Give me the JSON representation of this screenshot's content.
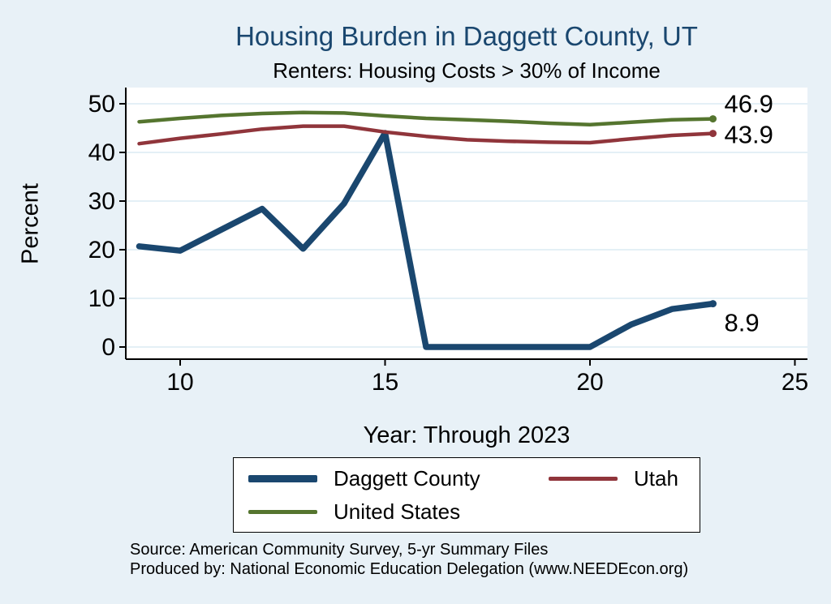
{
  "colors": {
    "background": "#e8f1f7",
    "title": "#1a476f",
    "plot_background": "#ffffff",
    "grid": "#dcebf3",
    "axis": "#000000",
    "legend_border": "#000000"
  },
  "chart_data": {
    "type": "line",
    "title": "Housing Burden in Daggett County, UT",
    "subtitle": "Renters: Housing Costs > 30% of Income",
    "xlabel": "Year: Through 2023",
    "ylabel": "Percent",
    "x": [
      9,
      10,
      11,
      12,
      13,
      14,
      15,
      16,
      17,
      18,
      19,
      20,
      21,
      22,
      23
    ],
    "x_ticks": [
      10,
      15,
      20,
      25
    ],
    "y_ticks": [
      0,
      10,
      20,
      30,
      40,
      50
    ],
    "xlim": [
      8.7,
      25.3
    ],
    "ylim": [
      -2.5,
      53.3
    ],
    "grid": "horizontal",
    "legend_position": "bottom",
    "series": [
      {
        "name": "Daggett County",
        "color": "#1a476f",
        "width": 7.5,
        "end_label": "8.9",
        "values": [
          20.7,
          19.8,
          24.1,
          28.4,
          20.2,
          29.5,
          44.0,
          0.0,
          0.0,
          0.0,
          0.0,
          0.0,
          4.6,
          7.8,
          8.9
        ]
      },
      {
        "name": "Utah",
        "color": "#90353b",
        "width": 4.5,
        "end_label": "43.9",
        "values": [
          41.8,
          42.9,
          43.8,
          44.8,
          45.4,
          45.4,
          44.2,
          43.3,
          42.6,
          42.3,
          42.1,
          42.0,
          42.8,
          43.5,
          43.9
        ]
      },
      {
        "name": "United States",
        "color": "#55752f",
        "width": 4.5,
        "end_label": "46.9",
        "values": [
          46.3,
          47.0,
          47.6,
          48.0,
          48.2,
          48.1,
          47.5,
          47.0,
          46.7,
          46.4,
          46.0,
          45.7,
          46.2,
          46.7,
          46.9
        ]
      }
    ]
  },
  "source": {
    "line1": "Source: American Community Survey, 5-yr Summary Files",
    "line2": "Produced by: National Economic Education Delegation (www.NEEDEcon.org)"
  }
}
